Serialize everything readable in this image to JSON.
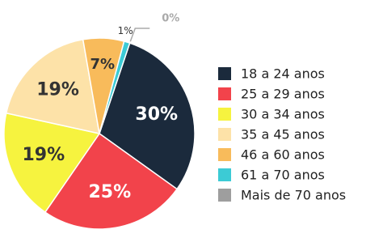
{
  "chart_data": {
    "type": "pie",
    "categories": [
      "18 a 24 anos",
      "25 a 29 anos",
      "30 a 34 anos",
      "35 a 45 anos",
      "46 a 60 anos",
      "61 a 70 anos",
      "Mais de 70 anos"
    ],
    "values": [
      30,
      25,
      19,
      19,
      7,
      1,
      0
    ],
    "value_labels": [
      "30%",
      "25%",
      "19%",
      "19%",
      "7%",
      "1%",
      "0%"
    ],
    "colors": [
      "#1b2a3c",
      "#f2434b",
      "#f6f33f",
      "#fde2a8",
      "#f8bb5b",
      "#3ccbd5",
      "#9e9e9e"
    ]
  }
}
